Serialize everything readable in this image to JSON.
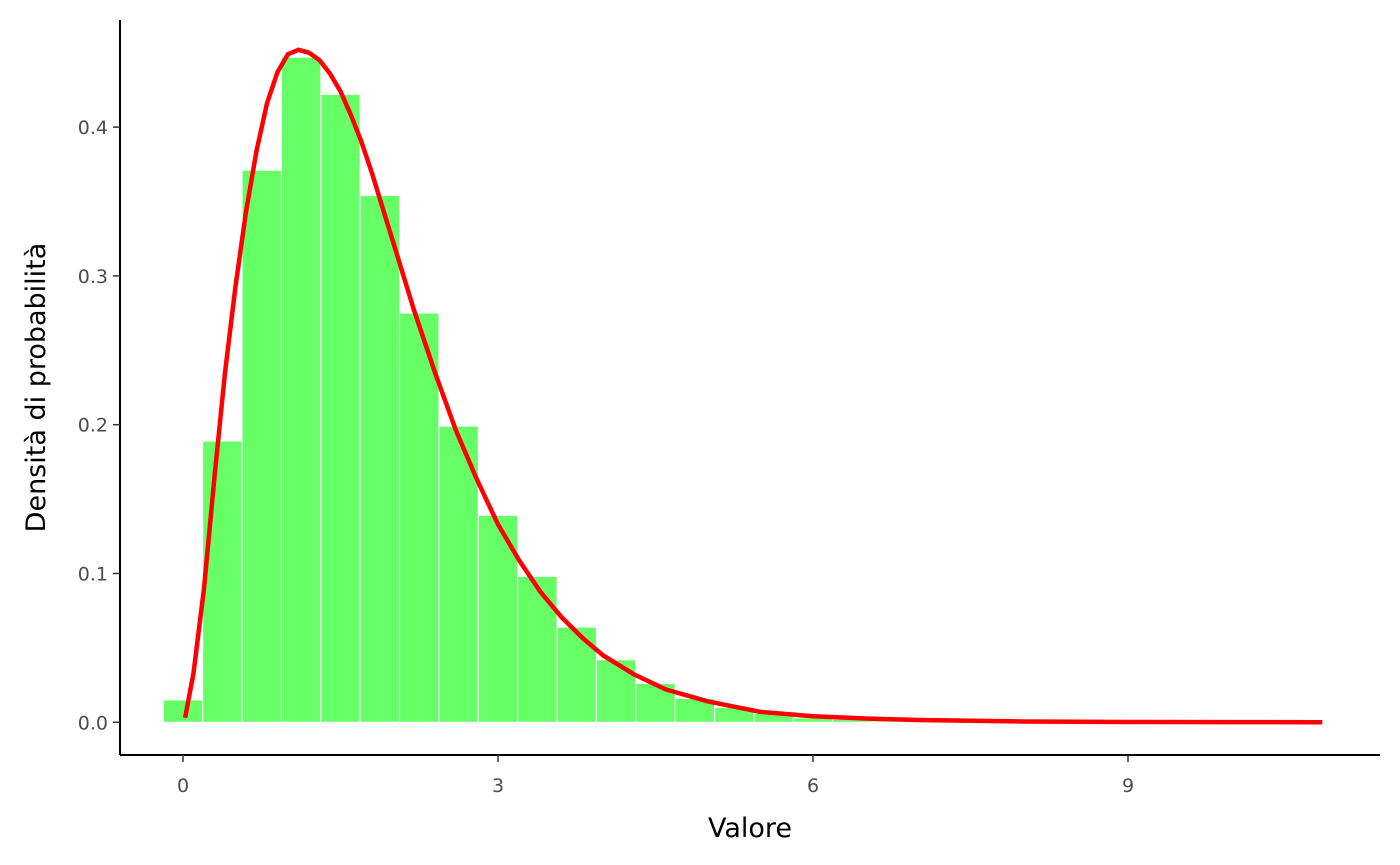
{
  "chart_data": {
    "type": "bar",
    "xlabel": "Valore",
    "ylabel": "Densità di probabilità",
    "xlim": [
      -0.6,
      11.4
    ],
    "ylim": [
      -0.022,
      0.472
    ],
    "x_ticks": [
      0,
      3,
      6,
      9
    ],
    "x_tick_labels": [
      "0",
      "3",
      "6",
      "9"
    ],
    "y_ticks": [
      0.0,
      0.1,
      0.2,
      0.3,
      0.4
    ],
    "y_tick_labels": [
      "0.0",
      "0.1",
      "0.2",
      "0.3",
      "0.4"
    ],
    "grid": false,
    "legend": "none",
    "bin_width": 0.375,
    "bins": [
      {
        "x": 0.0,
        "density": 0.015
      },
      {
        "x": 0.375,
        "density": 0.189
      },
      {
        "x": 0.75,
        "density": 0.371
      },
      {
        "x": 1.125,
        "density": 0.447
      },
      {
        "x": 1.5,
        "density": 0.422
      },
      {
        "x": 1.875,
        "density": 0.354
      },
      {
        "x": 2.25,
        "density": 0.275
      },
      {
        "x": 2.625,
        "density": 0.199
      },
      {
        "x": 3.0,
        "density": 0.139
      },
      {
        "x": 3.375,
        "density": 0.098
      },
      {
        "x": 3.75,
        "density": 0.064
      },
      {
        "x": 4.125,
        "density": 0.042
      },
      {
        "x": 4.5,
        "density": 0.026
      },
      {
        "x": 4.875,
        "density": 0.016
      },
      {
        "x": 5.25,
        "density": 0.01
      },
      {
        "x": 5.625,
        "density": 0.006
      },
      {
        "x": 6.0,
        "density": 0.003
      },
      {
        "x": 6.375,
        "density": 0.002
      },
      {
        "x": 6.75,
        "density": 0.001
      },
      {
        "x": 7.125,
        "density": 0.0005
      },
      {
        "x": 7.5,
        "density": 0.0003
      },
      {
        "x": 7.875,
        "density": 0.0002
      },
      {
        "x": 8.25,
        "density": 0.0001
      },
      {
        "x": 8.625,
        "density": 0.0001
      },
      {
        "x": 9.0,
        "density": 0.0001
      },
      {
        "x": 9.375,
        "density": 0.0
      },
      {
        "x": 9.75,
        "density": 0.0
      },
      {
        "x": 10.125,
        "density": 0.0
      },
      {
        "x": 10.5,
        "density": 0.0
      }
    ],
    "density_curve": {
      "x": [
        0.02,
        0.1,
        0.2,
        0.3,
        0.4,
        0.5,
        0.6,
        0.7,
        0.8,
        0.9,
        1.0,
        1.1,
        1.2,
        1.3,
        1.4,
        1.5,
        1.6,
        1.7,
        1.8,
        1.9,
        2.0,
        2.2,
        2.4,
        2.6,
        2.8,
        3.0,
        3.2,
        3.4,
        3.6,
        3.8,
        4.0,
        4.3,
        4.6,
        5.0,
        5.5,
        6.0,
        6.5,
        7.0,
        8.0,
        9.0,
        10.0,
        10.85
      ],
      "y": [
        0.003,
        0.033,
        0.09,
        0.165,
        0.235,
        0.293,
        0.343,
        0.384,
        0.416,
        0.437,
        0.449,
        0.452,
        0.45,
        0.445,
        0.436,
        0.424,
        0.408,
        0.39,
        0.369,
        0.346,
        0.323,
        0.277,
        0.235,
        0.196,
        0.163,
        0.133,
        0.109,
        0.088,
        0.071,
        0.057,
        0.045,
        0.032,
        0.022,
        0.014,
        0.007,
        0.004,
        0.0025,
        0.0015,
        0.0005,
        0.0002,
        0.0001,
        0.0
      ]
    },
    "colors": {
      "bar_fill": "#66ff66",
      "bar_outline": "#ffffff",
      "curve": "#ff0000",
      "axis": "#000000",
      "tick_label": "#4d4d4d"
    }
  }
}
